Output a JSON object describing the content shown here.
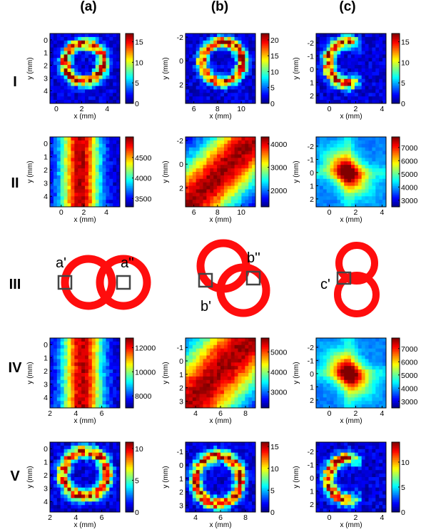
{
  "column_headers": [
    "(a)",
    "(b)",
    "(c)"
  ],
  "row_labels": [
    "I",
    "II",
    "III",
    "IV",
    "V"
  ],
  "colormap": "jet",
  "chart_data": [
    {
      "type": "heatmap",
      "row": "I",
      "col": "(a)",
      "pattern": "ring",
      "cx": 2.2,
      "cy": 1.8,
      "r": 1.5,
      "xlim": [
        -0.5,
        5
      ],
      "ylim": [
        -0.5,
        5
      ],
      "xticks": [
        0,
        2,
        4
      ],
      "yticks": [
        0,
        1,
        2,
        3,
        4
      ],
      "y_reversed": true,
      "xlabel": "x (mm)",
      "ylabel": "y (mm)",
      "clim": [
        0,
        17
      ],
      "cticks": [
        0,
        5,
        10,
        15
      ]
    },
    {
      "type": "heatmap",
      "row": "I",
      "col": "(b)",
      "pattern": "ring",
      "cx": 8.4,
      "cy": 0.1,
      "r": 1.7,
      "xlim": [
        5.3,
        11.2
      ],
      "ylim": [
        -2.3,
        3.6
      ],
      "xticks": [
        6,
        8,
        10
      ],
      "yticks": [
        -2,
        0,
        2
      ],
      "y_reversed": true,
      "xlabel": "x (mm)",
      "ylabel": "y (mm)",
      "clim": [
        0,
        22
      ],
      "cticks": [
        0,
        5,
        10,
        15,
        20
      ]
    },
    {
      "type": "heatmap",
      "row": "I",
      "col": "(c)",
      "pattern": "crescent",
      "cx": 1.5,
      "cy": -0.5,
      "r": 1.6,
      "xlim": [
        -1,
        4.3
      ],
      "ylim": [
        -2.7,
        2.6
      ],
      "xticks": [
        0,
        2,
        4
      ],
      "yticks": [
        -2,
        -1,
        0,
        1,
        2
      ],
      "y_reversed": true,
      "xlabel": "x (mm)",
      "ylabel": "y (mm)",
      "clim": [
        0,
        17
      ],
      "cticks": [
        0,
        5,
        10,
        15
      ]
    },
    {
      "type": "heatmap",
      "row": "II",
      "col": "(a)",
      "pattern": "vband",
      "cx": 1.7,
      "w": 1.7,
      "xlim": [
        -1,
        5.2
      ],
      "ylim": [
        -0.5,
        4.8
      ],
      "xticks": [
        0,
        2,
        4
      ],
      "yticks": [
        0,
        1,
        2,
        3,
        4
      ],
      "y_reversed": true,
      "xlabel": "x (mm)",
      "ylabel": "y (mm)",
      "clim": [
        3300,
        5000
      ],
      "cticks": [
        3500,
        4000,
        4500
      ]
    },
    {
      "type": "heatmap",
      "row": "II",
      "col": "(b)",
      "pattern": "diag",
      "cx": 8.3,
      "cy": 0.7,
      "w": 2.6,
      "xlim": [
        5.3,
        11.2
      ],
      "ylim": [
        -2.3,
        3.6
      ],
      "xticks": [
        6,
        8,
        10
      ],
      "yticks": [
        -2,
        0,
        2
      ],
      "y_reversed": true,
      "xlabel": "x (mm)",
      "ylabel": "y (mm)",
      "clim": [
        1300,
        4300
      ],
      "cticks": [
        2000,
        3000,
        4000
      ]
    },
    {
      "type": "heatmap",
      "row": "II",
      "col": "(c)",
      "pattern": "blob",
      "cx": 1.4,
      "cy": 0,
      "w": 1.8,
      "xlim": [
        -1,
        4.3
      ],
      "ylim": [
        -2.7,
        2.6
      ],
      "xticks": [
        0,
        2,
        4
      ],
      "yticks": [
        -2,
        -1,
        0,
        1,
        2
      ],
      "y_reversed": true,
      "xlabel": "x (mm)",
      "ylabel": "y (mm)",
      "clim": [
        2500,
        7800
      ],
      "cticks": [
        3000,
        4000,
        5000,
        6000,
        7000
      ]
    },
    {
      "type": "heatmap",
      "row": "IV",
      "col": "(a)",
      "pattern": "vband",
      "cx": 4.5,
      "w": 1.5,
      "xlim": [
        2,
        7.4
      ],
      "ylim": [
        -0.5,
        4.8
      ],
      "xticks": [
        2,
        4,
        6
      ],
      "yticks": [
        0,
        1,
        2,
        3,
        4
      ],
      "y_reversed": true,
      "xlabel": "x (mm)",
      "ylabel": "y (mm)",
      "clim": [
        7000,
        12800
      ],
      "cticks": [
        8000,
        10000,
        12000
      ]
    },
    {
      "type": "heatmap",
      "row": "IV",
      "col": "(b)",
      "pattern": "diag",
      "cx": 5.6,
      "cy": 1.1,
      "w": 2.8,
      "xlim": [
        3.2,
        8.8
      ],
      "ylim": [
        -1.7,
        3.5
      ],
      "xticks": [
        4,
        6,
        8
      ],
      "yticks": [
        -1,
        0,
        1,
        2,
        3
      ],
      "y_reversed": true,
      "xlabel": "x (mm)",
      "ylabel": "y (mm)",
      "clim": [
        2200,
        5700
      ],
      "cticks": [
        3000,
        4000,
        5000
      ]
    },
    {
      "type": "heatmap",
      "row": "IV",
      "col": "(c)",
      "pattern": "blob",
      "cx": 1.5,
      "cy": 0,
      "w": 1.8,
      "xlim": [
        -1,
        4.3
      ],
      "ylim": [
        -2.7,
        2.6
      ],
      "xticks": [
        0,
        2,
        4
      ],
      "yticks": [
        -2,
        -1,
        0,
        1,
        2
      ],
      "y_reversed": true,
      "xlabel": "x (mm)",
      "ylabel": "y (mm)",
      "clim": [
        2500,
        7800
      ],
      "cticks": [
        3000,
        4000,
        5000,
        6000,
        7000
      ]
    },
    {
      "type": "heatmap",
      "row": "V",
      "col": "(a)",
      "pattern": "ring",
      "cx": 4.7,
      "cy": 1.9,
      "r": 1.7,
      "xlim": [
        2,
        7.4
      ],
      "ylim": [
        -0.5,
        4.8
      ],
      "xticks": [
        2,
        4,
        6
      ],
      "yticks": [
        0,
        1,
        2,
        3,
        4
      ],
      "y_reversed": true,
      "xlabel": "x (mm)",
      "ylabel": "y (mm)",
      "clim": [
        0,
        11
      ],
      "cticks": [
        0,
        5,
        10
      ]
    },
    {
      "type": "heatmap",
      "row": "V",
      "col": "(b)",
      "pattern": "ring",
      "cx": 5.8,
      "cy": 1.1,
      "r": 1.8,
      "xlim": [
        3.2,
        8.8
      ],
      "ylim": [
        -1.7,
        3.5
      ],
      "xticks": [
        4,
        6,
        8
      ],
      "yticks": [
        -1,
        0,
        1,
        2,
        3
      ],
      "y_reversed": true,
      "xlabel": "x (mm)",
      "ylabel": "y (mm)",
      "clim": [
        0,
        16
      ],
      "cticks": [
        0,
        5,
        10,
        15
      ]
    },
    {
      "type": "heatmap",
      "row": "V",
      "col": "(c)",
      "pattern": "crescent",
      "cx": 1.5,
      "cy": 0.1,
      "r": 1.6,
      "xlim": [
        -1,
        4.3
      ],
      "ylim": [
        -2.7,
        2.6
      ],
      "xticks": [
        0,
        2,
        4
      ],
      "yticks": [
        -2,
        -1,
        0,
        1,
        2
      ],
      "y_reversed": true,
      "xlabel": "x (mm)",
      "ylabel": "y (mm)",
      "clim": [
        0,
        14
      ],
      "cticks": [
        0,
        5,
        10
      ]
    }
  ],
  "diagrams": [
    {
      "col": "(a)",
      "arrangement": "two rings side by side",
      "labels": [
        "a'",
        "a''"
      ]
    },
    {
      "col": "(b)",
      "arrangement": "two rings diagonal",
      "labels": [
        "b''",
        "b'"
      ]
    },
    {
      "col": "(c)",
      "arrangement": "two rings stacked vertically",
      "labels": [
        "c'"
      ]
    }
  ],
  "colors": {
    "ring": "#ff0d0d",
    "marker": "#444444"
  }
}
